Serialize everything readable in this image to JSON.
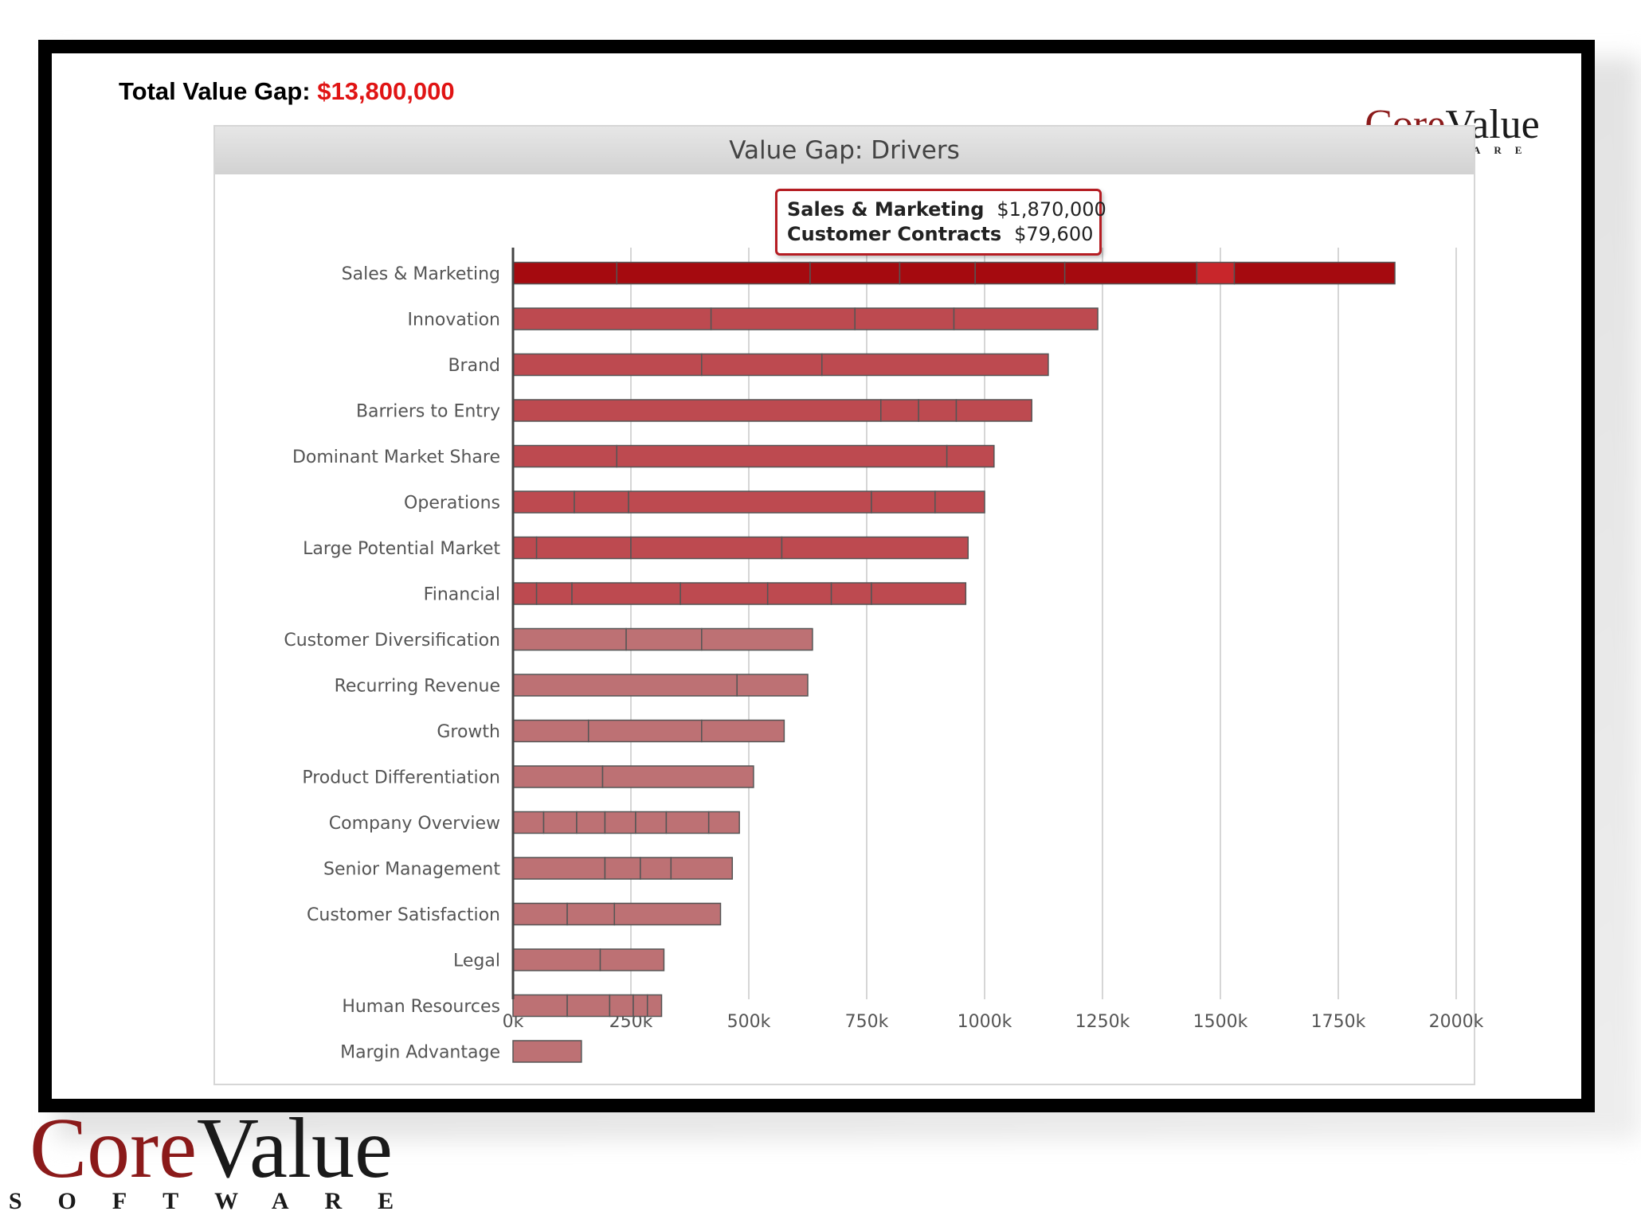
{
  "header": {
    "total_label": "Total Value Gap:",
    "total_value": "$13,800,000",
    "total_value_color": "#e01414"
  },
  "logo": {
    "brand_part1": "Core",
    "brand_part2": "Value",
    "sub": "SOFTWARE",
    "brand_color": "#8b1a1a"
  },
  "tooltip": {
    "rows": [
      {
        "label": "Sales & Marketing",
        "value": "$1,870,000"
      },
      {
        "label": "Customer Contracts",
        "value": "$79,600"
      }
    ]
  },
  "chart_data": {
    "type": "bar",
    "orientation": "horizontal",
    "stacked": true,
    "title": "Value Gap: Drivers",
    "xlabel": "",
    "ylabel": "",
    "xlim": [
      0,
      2000000
    ],
    "xticks": [
      0,
      250000,
      500000,
      750000,
      1000000,
      1250000,
      1500000,
      1750000,
      2000000
    ],
    "xtick_labels": [
      "0k",
      "250k",
      "500k",
      "750k",
      "1000k",
      "1250k",
      "1500k",
      "1750k",
      "2000k"
    ],
    "grid": true,
    "legend": "none",
    "categories": [
      "Sales & Marketing",
      "Innovation",
      "Brand",
      "Barriers to Entry",
      "Dominant Market Share",
      "Operations",
      "Large Potential Market",
      "Financial",
      "Customer Diversification",
      "Recurring Revenue",
      "Growth",
      "Product Differentiation",
      "Company Overview",
      "Senior Management",
      "Customer Satisfaction",
      "Legal",
      "Human Resources",
      "Margin Advantage"
    ],
    "totals": [
      1870000,
      1240000,
      1135000,
      1100000,
      1020000,
      1000000,
      965000,
      960000,
      635000,
      625000,
      575000,
      510000,
      480000,
      465000,
      440000,
      320000,
      315000,
      145000
    ],
    "segments": [
      [
        220000,
        410000,
        190000,
        160000,
        190000,
        280000,
        79600,
        340400
      ],
      [
        420000,
        305000,
        210000,
        305000
      ],
      [
        400000,
        255000,
        480000
      ],
      [
        780000,
        80000,
        80000,
        160000
      ],
      [
        220000,
        700000,
        100000
      ],
      [
        130000,
        115000,
        515000,
        135000,
        105000
      ],
      [
        50000,
        200000,
        320000,
        395000
      ],
      [
        50000,
        75000,
        230000,
        185000,
        135000,
        85000,
        200000
      ],
      [
        240000,
        160000,
        235000
      ],
      [
        475000,
        150000
      ],
      [
        160000,
        240000,
        175000
      ],
      [
        190000,
        320000
      ],
      [
        65000,
        70000,
        60000,
        65000,
        65000,
        90000,
        65000
      ],
      [
        195000,
        75000,
        65000,
        130000
      ],
      [
        115000,
        100000,
        225000
      ],
      [
        185000,
        135000
      ],
      [
        115000,
        90000,
        50000,
        30000,
        30000
      ],
      [
        145000
      ]
    ],
    "colors": {
      "highlight": "#a50a0f",
      "highlight_segment": "#c8262b",
      "strong": "#bd4a50",
      "light": "#bd7174",
      "divider": "#555555"
    }
  }
}
